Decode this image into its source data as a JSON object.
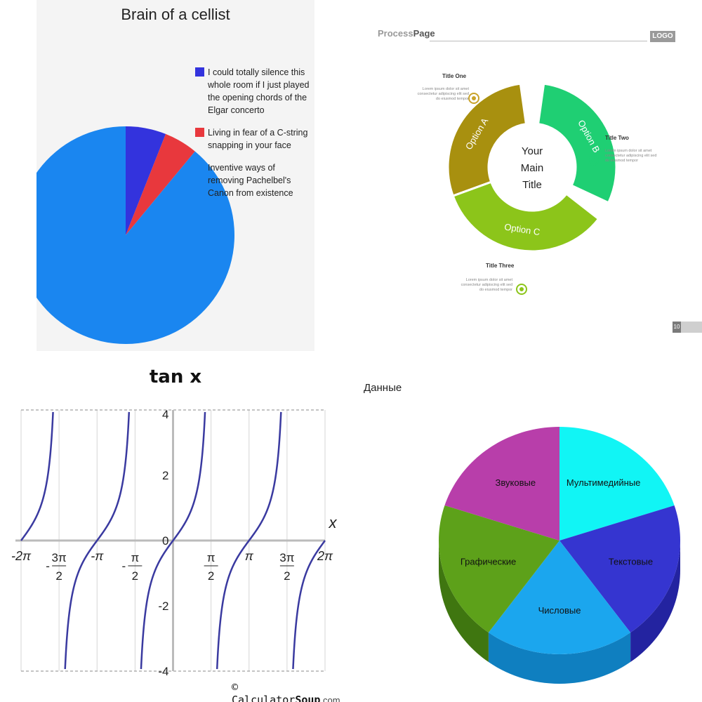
{
  "panel_top_left": {
    "title": "Brain of a cellist",
    "legend": [
      {
        "label": "I could totally silence this whole room if I just played the opening chords of the Elgar concerto",
        "color": "#3333dd"
      },
      {
        "label": "Living in fear of a C-string snapping in your face",
        "color": "#e8383d"
      },
      {
        "label": "Inventive ways of removing Pachelbel's Canon from existence",
        "color": "#1a86f0"
      }
    ]
  },
  "panel_top_right": {
    "header_light": "Process",
    "header_bold": "Page",
    "badge": "LOGO",
    "center_label": [
      "Your",
      "Main",
      "Title"
    ],
    "segments": [
      {
        "label": "Option A",
        "color": "#a8900f"
      },
      {
        "label": "Option B",
        "color": "#1fcf73"
      },
      {
        "label": "Option C",
        "color": "#8cc51a"
      }
    ],
    "callouts": [
      {
        "title": "Title One",
        "text": "Lorem ipsum dolor sit amet consectetur adipiscing elit sed do eiusmod tempor"
      },
      {
        "title": "Title Two",
        "text": "Lorem ipsum dolor sit amet consectetur adipiscing elit sed do eiusmod tempor"
      },
      {
        "title": "Title Three",
        "text": "Lorem ipsum dolor sit amet consectetur adipiscing elit sed do eiusmod tempor"
      }
    ],
    "page_number": "10"
  },
  "panel_bottom_left": {
    "title": "tan x",
    "x_axis_label": "x",
    "footer_brand": "Calculator",
    "footer_brand_bold": "Soup",
    "footer_domain": ".com",
    "footer_symbol": "©"
  },
  "panel_bottom_right": {
    "title": "Данные"
  },
  "chart_data": [
    {
      "type": "pie",
      "title": "Brain of a cellist",
      "categories": [
        "I could totally silence this whole room if I just played the opening chords of the Elgar concerto",
        "Living in fear of a C-string snapping in your face",
        "Inventive ways of removing Pachelbel's Canon from existence"
      ],
      "values": [
        6,
        5,
        89
      ],
      "colors": [
        "#3333dd",
        "#e8383d",
        "#1a86f0"
      ],
      "legend": "right"
    },
    {
      "type": "line",
      "title": "tan x",
      "xlabel": "x",
      "ylabel": "",
      "xlim": [
        -6.2832,
        6.2832
      ],
      "ylim": [
        -4,
        4
      ],
      "x_ticks": [
        {
          "value": -6.2832,
          "label": "-2π"
        },
        {
          "value": -4.7124,
          "label": "-3π/2"
        },
        {
          "value": -3.1416,
          "label": "-π"
        },
        {
          "value": -1.5708,
          "label": "-π/2"
        },
        {
          "value": 1.5708,
          "label": "π/2"
        },
        {
          "value": 3.1416,
          "label": "π"
        },
        {
          "value": 4.7124,
          "label": "3π/2"
        },
        {
          "value": 6.2832,
          "label": "2π"
        }
      ],
      "y_ticks": [
        {
          "value": 4,
          "label": "4"
        },
        {
          "value": 2,
          "label": "2"
        },
        {
          "value": 0,
          "label": "0"
        },
        {
          "value": -2,
          "label": "-2"
        },
        {
          "value": -4,
          "label": "-4"
        }
      ],
      "series": [
        {
          "function": "tan(x)",
          "color": "#3a3aa0"
        }
      ],
      "asymptotes": [
        -4.7124,
        -1.5708,
        1.5708,
        4.7124
      ],
      "grid": true
    },
    {
      "type": "pie",
      "title": "Данные",
      "categories": [
        "Мультимедийные",
        "Текстовые",
        "Числовые",
        "Графические",
        "Звуковые"
      ],
      "values": [
        20,
        20,
        20,
        20,
        20
      ],
      "colors": [
        "#11f5f5",
        "#3535d0",
        "#1ba6ee",
        "#5da11a",
        "#b83eaa"
      ],
      "legend": "none"
    }
  ]
}
